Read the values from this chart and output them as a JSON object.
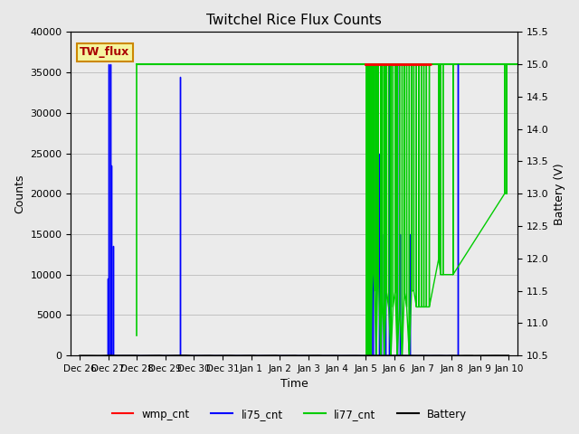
{
  "title": "Twitchel Rice Flux Counts",
  "xlabel": "Time",
  "ylabel_left": "Counts",
  "ylabel_right": "Battery (V)",
  "ylim_left": [
    0,
    40000
  ],
  "ylim_right": [
    10.5,
    15.5
  ],
  "yticks_left": [
    0,
    5000,
    10000,
    15000,
    20000,
    25000,
    30000,
    35000,
    40000
  ],
  "yticks_right": [
    10.5,
    11.0,
    11.5,
    12.0,
    12.5,
    13.0,
    13.5,
    14.0,
    14.5,
    15.0,
    15.5
  ],
  "bg_color": "#e8e8e8",
  "plot_bg_color": "#d8d8d8",
  "inner_bg_color": "#ebebeb",
  "label_box_color": "#f5f5a0",
  "label_box_text": "TW_flux",
  "label_box_edge": "#cc8800",
  "legend_entries": [
    "wmp_cnt",
    "li75_cnt",
    "li77_cnt",
    "Battery"
  ],
  "legend_colors": [
    "#ff0000",
    "#0000ff",
    "#00cc00",
    "#000000"
  ],
  "x_tick_labels": [
    "Dec 26",
    "Dec 27",
    "Dec 28",
    "Dec 29",
    "Dec 30",
    "Dec 31",
    "Jan 1",
    "Jan 2",
    "Jan 3",
    "Jan 4",
    "Jan 5",
    "Jan 6",
    "Jan 7",
    "Jan 8",
    "Jan 9",
    "Jan 10"
  ],
  "xlim": [
    -0.3,
    15.3
  ],
  "flat_value": 36000
}
